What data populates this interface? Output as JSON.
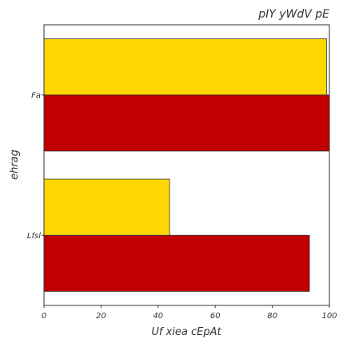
{
  "chart_data": {
    "type": "bar",
    "orientation": "horizontal",
    "title": "pIY yWdV pE",
    "xlabel": "Uf xiea cEpAt",
    "ylabel": "ehrag",
    "categories": [
      "Lfsl",
      "Fa"
    ],
    "series": [
      {
        "color": "#c00000",
        "values": [
          93,
          100
        ]
      },
      {
        "color": "#ffd700",
        "values": [
          44,
          99
        ]
      }
    ],
    "xlim": [
      0,
      100
    ],
    "xticks": [
      0,
      20,
      40,
      60,
      80,
      100
    ],
    "grid": false,
    "legend": false
  }
}
